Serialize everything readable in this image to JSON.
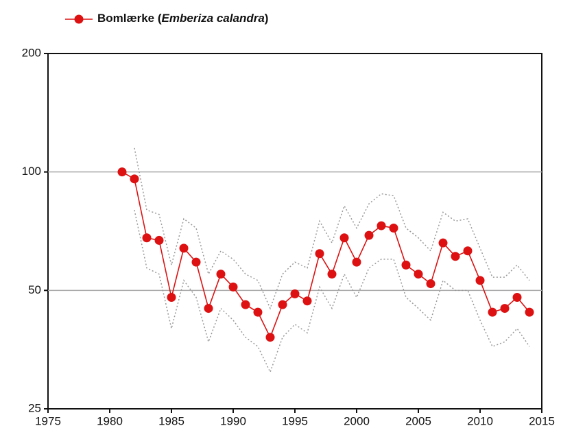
{
  "chart_data": {
    "type": "line",
    "x": [
      1981,
      1982,
      1983,
      1984,
      1985,
      1986,
      1987,
      1988,
      1989,
      1990,
      1991,
      1992,
      1993,
      1994,
      1995,
      1996,
      1997,
      1998,
      1999,
      2000,
      2001,
      2002,
      2003,
      2004,
      2005,
      2006,
      2007,
      2008,
      2009,
      2010,
      2011,
      2012,
      2013,
      2014
    ],
    "series": [
      {
        "name": "Bomlærke (Emberiza calandra)",
        "color": "#dd1111",
        "band_color": "#999999",
        "values": [
          100,
          96,
          68,
          67,
          48,
          64,
          59,
          45,
          55,
          51,
          46,
          44,
          38,
          46,
          49,
          47,
          62,
          55,
          68,
          59,
          69,
          73,
          72,
          58,
          55,
          52,
          66,
          61,
          63,
          53,
          44,
          45,
          48,
          44
        ],
        "upper_values": [
          null,
          115,
          80,
          78,
          58,
          76,
          72,
          55,
          63,
          60,
          55,
          53,
          45,
          55,
          59,
          57,
          75,
          66,
          82,
          72,
          83,
          88,
          87,
          72,
          68,
          63,
          79,
          75,
          76,
          64,
          54,
          54,
          58,
          53
        ],
        "lower_values": [
          null,
          80,
          57,
          55,
          40,
          53,
          48,
          37,
          45,
          42,
          38,
          36,
          31,
          38,
          41,
          39,
          51,
          45,
          55,
          48,
          57,
          60,
          60,
          48,
          45,
          42,
          53,
          50,
          50,
          42,
          36,
          37,
          40,
          36
        ]
      }
    ],
    "xlim": [
      1975,
      2015
    ],
    "xticks": [
      1975,
      1980,
      1985,
      1990,
      1995,
      2000,
      2005,
      2010,
      2015
    ],
    "ylim": [
      25,
      200
    ],
    "yticks": [
      25,
      50,
      100,
      200
    ],
    "log_y": true,
    "grid": true,
    "legend": "top-left"
  }
}
